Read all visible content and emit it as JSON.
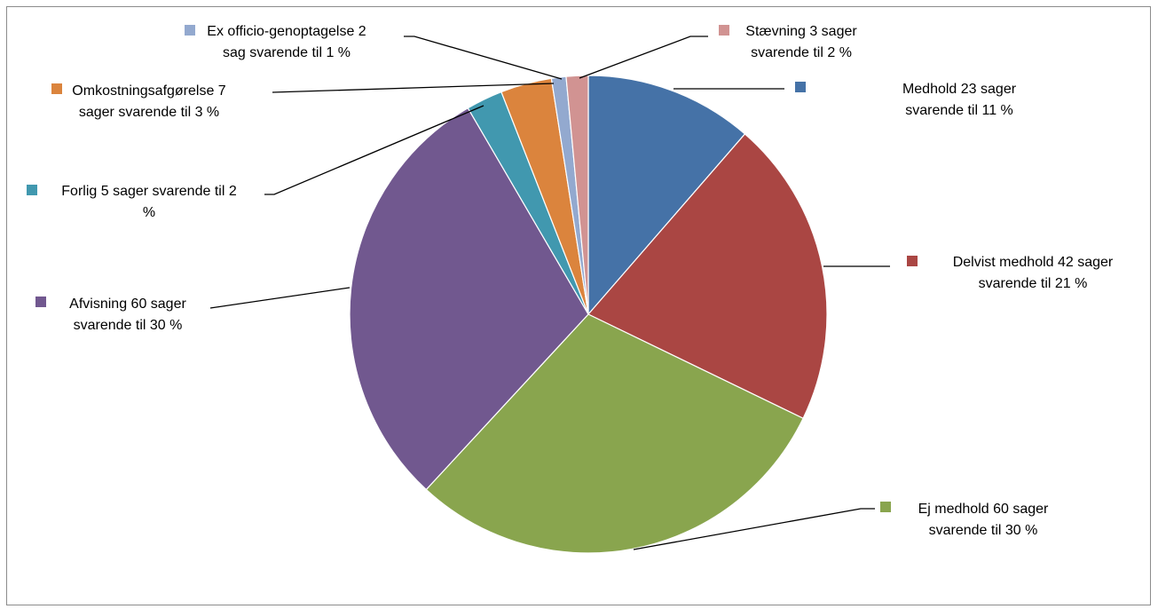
{
  "chart_data": {
    "type": "pie",
    "title": "",
    "start_angle_deg": 0,
    "direction": "clockwise",
    "slices": [
      {
        "name": "Medhold",
        "value": 23,
        "color": "#4572a7",
        "label_lines": [
          "Medhold 23 sager",
          "svarende til 11 %"
        ]
      },
      {
        "name": "Delvist medhold",
        "value": 42,
        "color": "#aa4643",
        "label_lines": [
          "Delvist medhold 42 sager",
          "svarende til 21 %"
        ]
      },
      {
        "name": "Ej medhold",
        "value": 60,
        "color": "#89a54e",
        "label_lines": [
          "Ej medhold 60 sager",
          "svarende til 30 %"
        ]
      },
      {
        "name": "Afvisning",
        "value": 60,
        "color": "#71588f",
        "label_lines": [
          "Afvisning 60 sager",
          "svarende til 30 %"
        ]
      },
      {
        "name": "Forlig",
        "value": 5,
        "color": "#4198af",
        "label_lines": [
          "Forlig 5 sager svarende til 2",
          "%"
        ]
      },
      {
        "name": "Omkostningsafgørelse",
        "value": 7,
        "color": "#db843d",
        "label_lines": [
          "Omkostningsafgørelse 7",
          "sager svarende til 3 %"
        ]
      },
      {
        "name": "Ex officio-genoptagelse",
        "value": 2,
        "color": "#93a9cf",
        "label_lines": [
          "Ex officio-genoptagelse 2",
          "sag svarende til 1 %"
        ]
      },
      {
        "name": "Stævning",
        "value": 3,
        "color": "#d19392",
        "label_lines": [
          "Stævning 3 sager",
          "svarende til 2 %"
        ]
      }
    ]
  }
}
